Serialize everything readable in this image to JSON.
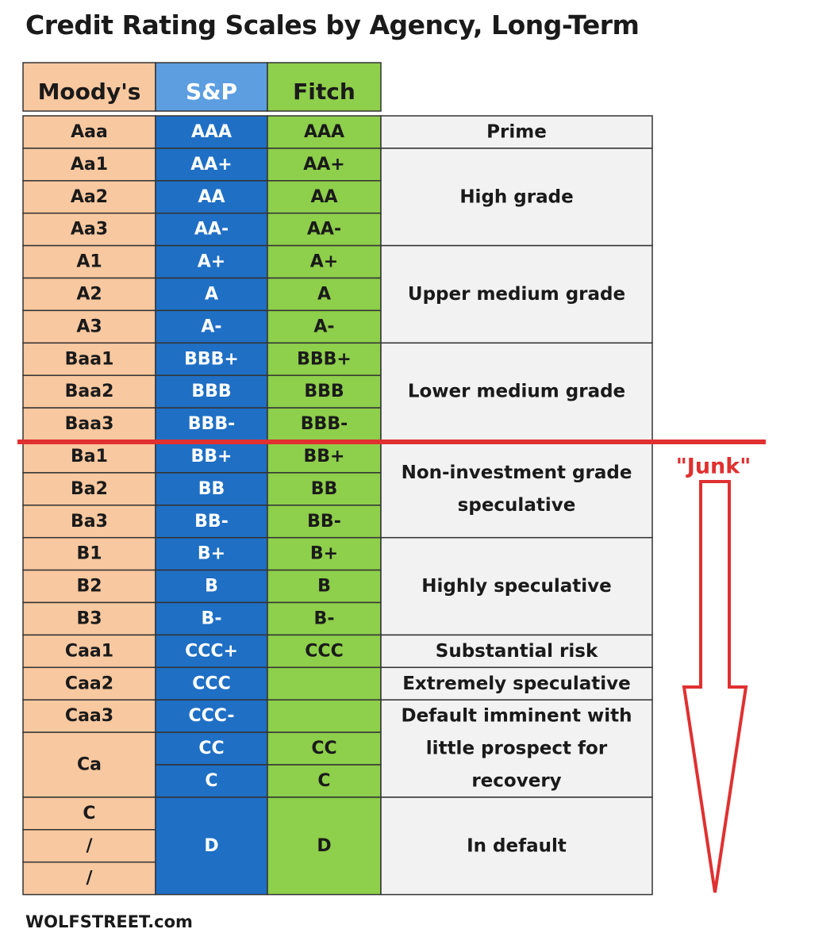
{
  "title": "Credit Rating Scales by Agency, Long-Term",
  "footer": "WOLFSTREET.com",
  "colors": {
    "moodys": "#f8c8a0",
    "sp": "#1f6fc5",
    "sp_header": "#5d9ee0",
    "fitch": "#8ecf4b",
    "desc": "#f2f2f2",
    "junk": "#e03030"
  },
  "chart_data": {
    "type": "table",
    "columns": [
      "Moody's",
      "S&P",
      "Fitch"
    ],
    "rows": [
      {
        "moodys": "Aaa",
        "sp": "AAA",
        "fitch": "AAA"
      },
      {
        "moodys": "Aa1",
        "sp": "AA+",
        "fitch": "AA+"
      },
      {
        "moodys": "Aa2",
        "sp": "AA",
        "fitch": "AA"
      },
      {
        "moodys": "Aa3",
        "sp": "AA-",
        "fitch": "AA-"
      },
      {
        "moodys": "A1",
        "sp": "A+",
        "fitch": "A+"
      },
      {
        "moodys": "A2",
        "sp": "A",
        "fitch": "A"
      },
      {
        "moodys": "A3",
        "sp": "A-",
        "fitch": "A-"
      },
      {
        "moodys": "Baa1",
        "sp": "BBB+",
        "fitch": "BBB+"
      },
      {
        "moodys": "Baa2",
        "sp": "BBB",
        "fitch": "BBB"
      },
      {
        "moodys": "Baa3",
        "sp": "BBB-",
        "fitch": "BBB-"
      },
      {
        "moodys": "Ba1",
        "sp": "BB+",
        "fitch": "BB+"
      },
      {
        "moodys": "Ba2",
        "sp": "BB",
        "fitch": "BB"
      },
      {
        "moodys": "Ba3",
        "sp": "BB-",
        "fitch": "BB-"
      },
      {
        "moodys": "B1",
        "sp": "B+",
        "fitch": "B+"
      },
      {
        "moodys": "B2",
        "sp": "B",
        "fitch": "B"
      },
      {
        "moodys": "B3",
        "sp": "B-",
        "fitch": "B-"
      },
      {
        "moodys": "Caa1",
        "sp": "CCC+",
        "fitch": "CCC"
      },
      {
        "moodys": "Caa2",
        "sp": "CCC",
        "fitch": ""
      },
      {
        "moodys": "Caa3",
        "sp": "CCC-",
        "fitch": ""
      },
      {
        "moodys": "Ca",
        "sp": "CC",
        "fitch": "CC"
      },
      {
        "moodys": "Ca",
        "sp": "C",
        "fitch": "C"
      },
      {
        "moodys": "C",
        "sp": "D",
        "fitch": "D"
      },
      {
        "moodys": "/",
        "sp": "D",
        "fitch": "D"
      },
      {
        "moodys": "/",
        "sp": "D",
        "fitch": "D"
      }
    ],
    "categories": [
      {
        "lines": [
          "Prime"
        ],
        "start": 0,
        "span": 1
      },
      {
        "lines": [
          "High grade"
        ],
        "start": 1,
        "span": 3
      },
      {
        "lines": [
          "Upper medium grade"
        ],
        "start": 4,
        "span": 3
      },
      {
        "lines": [
          "Lower medium grade"
        ],
        "start": 7,
        "span": 3
      },
      {
        "lines": [
          "Non-investment grade",
          "speculative"
        ],
        "start": 10,
        "span": 3
      },
      {
        "lines": [
          "Highly speculative"
        ],
        "start": 13,
        "span": 3
      },
      {
        "lines": [
          "Substantial risk"
        ],
        "start": 16,
        "span": 1
      },
      {
        "lines": [
          "Extremely speculative"
        ],
        "start": 17,
        "span": 1
      },
      {
        "lines": [
          "Default imminent with",
          "little prospect for",
          "recovery"
        ],
        "start": 18,
        "span": 3
      },
      {
        "lines": [
          "In default"
        ],
        "start": 21,
        "span": 3
      }
    ],
    "junk_label": "\"Junk\"",
    "junk_boundary_after_row": 9
  }
}
